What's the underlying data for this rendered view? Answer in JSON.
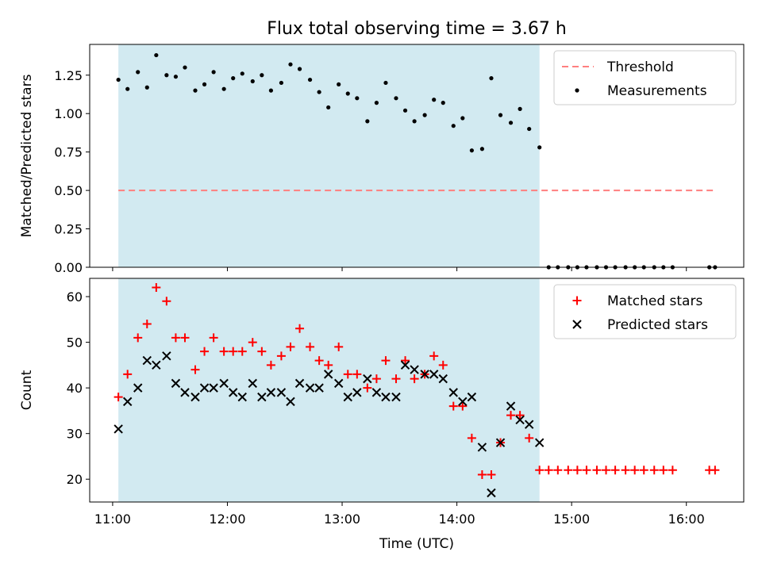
{
  "figure": {
    "title": "Flux total observing time = 3.67 h"
  },
  "chart_data": [
    {
      "type": "scatter",
      "panel": "top",
      "title": "Flux total observing time = 3.67 h",
      "xlabel": "",
      "ylabel": "Matched/Predicted stars",
      "xlim": [
        10.8,
        16.5
      ],
      "ylim": [
        0.0,
        1.45
      ],
      "yticks": [
        0.0,
        0.25,
        0.5,
        0.75,
        1.0,
        1.25
      ],
      "ytick_labels": [
        "0.00",
        "0.25",
        "0.50",
        "0.75",
        "1.00",
        "1.25"
      ],
      "grid": false,
      "legend": {
        "placement": "top-right",
        "entries": [
          "Threshold",
          "Measurements"
        ]
      },
      "observing_window": [
        11.05,
        14.72
      ],
      "observing_window_color": "#add8e6",
      "threshold": {
        "name": "Threshold",
        "x": [
          11.05,
          16.25
        ],
        "y": 0.5,
        "color": "#ff7f7f",
        "style": "dashed"
      },
      "series": [
        {
          "name": "Measurements",
          "color": "#000000",
          "marker": "dot",
          "x": [
            11.05,
            11.13,
            11.22,
            11.3,
            11.38,
            11.47,
            11.55,
            11.63,
            11.72,
            11.8,
            11.88,
            11.97,
            12.05,
            12.13,
            12.22,
            12.3,
            12.38,
            12.47,
            12.55,
            12.63,
            12.72,
            12.8,
            12.88,
            12.97,
            13.05,
            13.13,
            13.22,
            13.3,
            13.38,
            13.47,
            13.55,
            13.63,
            13.72,
            13.8,
            13.88,
            13.97,
            14.05,
            14.13,
            14.22,
            14.3,
            14.38,
            14.47,
            14.55,
            14.63,
            14.72,
            14.8,
            14.88,
            14.97,
            15.05,
            15.13,
            15.22,
            15.3,
            15.38,
            15.47,
            15.55,
            15.63,
            15.72,
            15.8,
            15.88,
            16.2,
            16.25
          ],
          "y": [
            1.22,
            1.16,
            1.27,
            1.17,
            1.38,
            1.25,
            1.24,
            1.3,
            1.15,
            1.19,
            1.27,
            1.16,
            1.23,
            1.26,
            1.21,
            1.25,
            1.15,
            1.2,
            1.32,
            1.29,
            1.22,
            1.14,
            1.04,
            1.19,
            1.13,
            1.1,
            0.95,
            1.07,
            1.2,
            1.1,
            1.02,
            0.95,
            0.99,
            1.09,
            1.07,
            0.92,
            0.97,
            0.76,
            0.77,
            1.23,
            0.99,
            0.94,
            1.03,
            0.9,
            0.78,
            0.0,
            0.0,
            0.0,
            0.0,
            0.0,
            0.0,
            0.0,
            0.0,
            0.0,
            0.0,
            0.0,
            0.0,
            0.0,
            0.0,
            0.0,
            0.0
          ]
        }
      ]
    },
    {
      "type": "scatter",
      "panel": "bottom",
      "xlabel": "Time (UTC)",
      "ylabel": "Count",
      "xlim": [
        10.8,
        16.5
      ],
      "ylim": [
        15,
        64
      ],
      "xticks": [
        11,
        12,
        13,
        14,
        15,
        16
      ],
      "xtick_labels": [
        "11:00",
        "12:00",
        "13:00",
        "14:00",
        "15:00",
        "16:00"
      ],
      "yticks": [
        20,
        30,
        40,
        50,
        60
      ],
      "ytick_labels": [
        "20",
        "30",
        "40",
        "50",
        "60"
      ],
      "grid": false,
      "legend": {
        "placement": "top-right",
        "entries": [
          "Matched stars",
          "Predicted stars"
        ]
      },
      "observing_window": [
        11.05,
        14.72
      ],
      "observing_window_color": "#add8e6",
      "series": [
        {
          "name": "Matched stars",
          "color": "#ff0000",
          "marker": "plus",
          "x": [
            11.05,
            11.13,
            11.22,
            11.3,
            11.38,
            11.47,
            11.55,
            11.63,
            11.72,
            11.8,
            11.88,
            11.97,
            12.05,
            12.13,
            12.22,
            12.3,
            12.38,
            12.47,
            12.55,
            12.63,
            12.72,
            12.8,
            12.88,
            12.97,
            13.05,
            13.13,
            13.22,
            13.3,
            13.38,
            13.47,
            13.55,
            13.63,
            13.72,
            13.8,
            13.88,
            13.97,
            14.05,
            14.13,
            14.22,
            14.3,
            14.38,
            14.47,
            14.55,
            14.63,
            14.72,
            14.8,
            14.88,
            14.97,
            15.05,
            15.13,
            15.22,
            15.3,
            15.38,
            15.47,
            15.55,
            15.63,
            15.72,
            15.8,
            15.88,
            16.2,
            16.25
          ],
          "y": [
            38,
            43,
            51,
            54,
            62,
            59,
            51,
            51,
            44,
            48,
            51,
            48,
            48,
            48,
            50,
            48,
            45,
            47,
            49,
            53,
            49,
            46,
            45,
            49,
            43,
            43,
            40,
            42,
            46,
            42,
            46,
            42,
            43,
            47,
            45,
            36,
            36,
            29,
            21,
            21,
            28,
            34,
            34,
            29,
            22,
            22,
            22,
            22,
            22,
            22,
            22,
            22,
            22,
            22,
            22,
            22,
            22,
            22,
            22,
            22,
            22
          ]
        },
        {
          "name": "Predicted stars",
          "color": "#000000",
          "marker": "x",
          "x": [
            11.05,
            11.13,
            11.22,
            11.3,
            11.38,
            11.47,
            11.55,
            11.63,
            11.72,
            11.8,
            11.88,
            11.97,
            12.05,
            12.13,
            12.22,
            12.3,
            12.38,
            12.47,
            12.55,
            12.63,
            12.72,
            12.8,
            12.88,
            12.97,
            13.05,
            13.13,
            13.22,
            13.3,
            13.38,
            13.47,
            13.55,
            13.63,
            13.72,
            13.8,
            13.88,
            13.97,
            14.05,
            14.13,
            14.22,
            14.3,
            14.38,
            14.47,
            14.55,
            14.63,
            14.72
          ],
          "y": [
            31,
            37,
            40,
            46,
            45,
            47,
            41,
            39,
            38,
            40,
            40,
            41,
            39,
            38,
            41,
            38,
            39,
            39,
            37,
            41,
            40,
            40,
            43,
            41,
            38,
            39,
            42,
            39,
            38,
            38,
            45,
            44,
            43,
            43,
            42,
            39,
            37,
            38,
            27,
            17,
            28,
            36,
            33,
            32,
            28
          ]
        }
      ]
    }
  ]
}
